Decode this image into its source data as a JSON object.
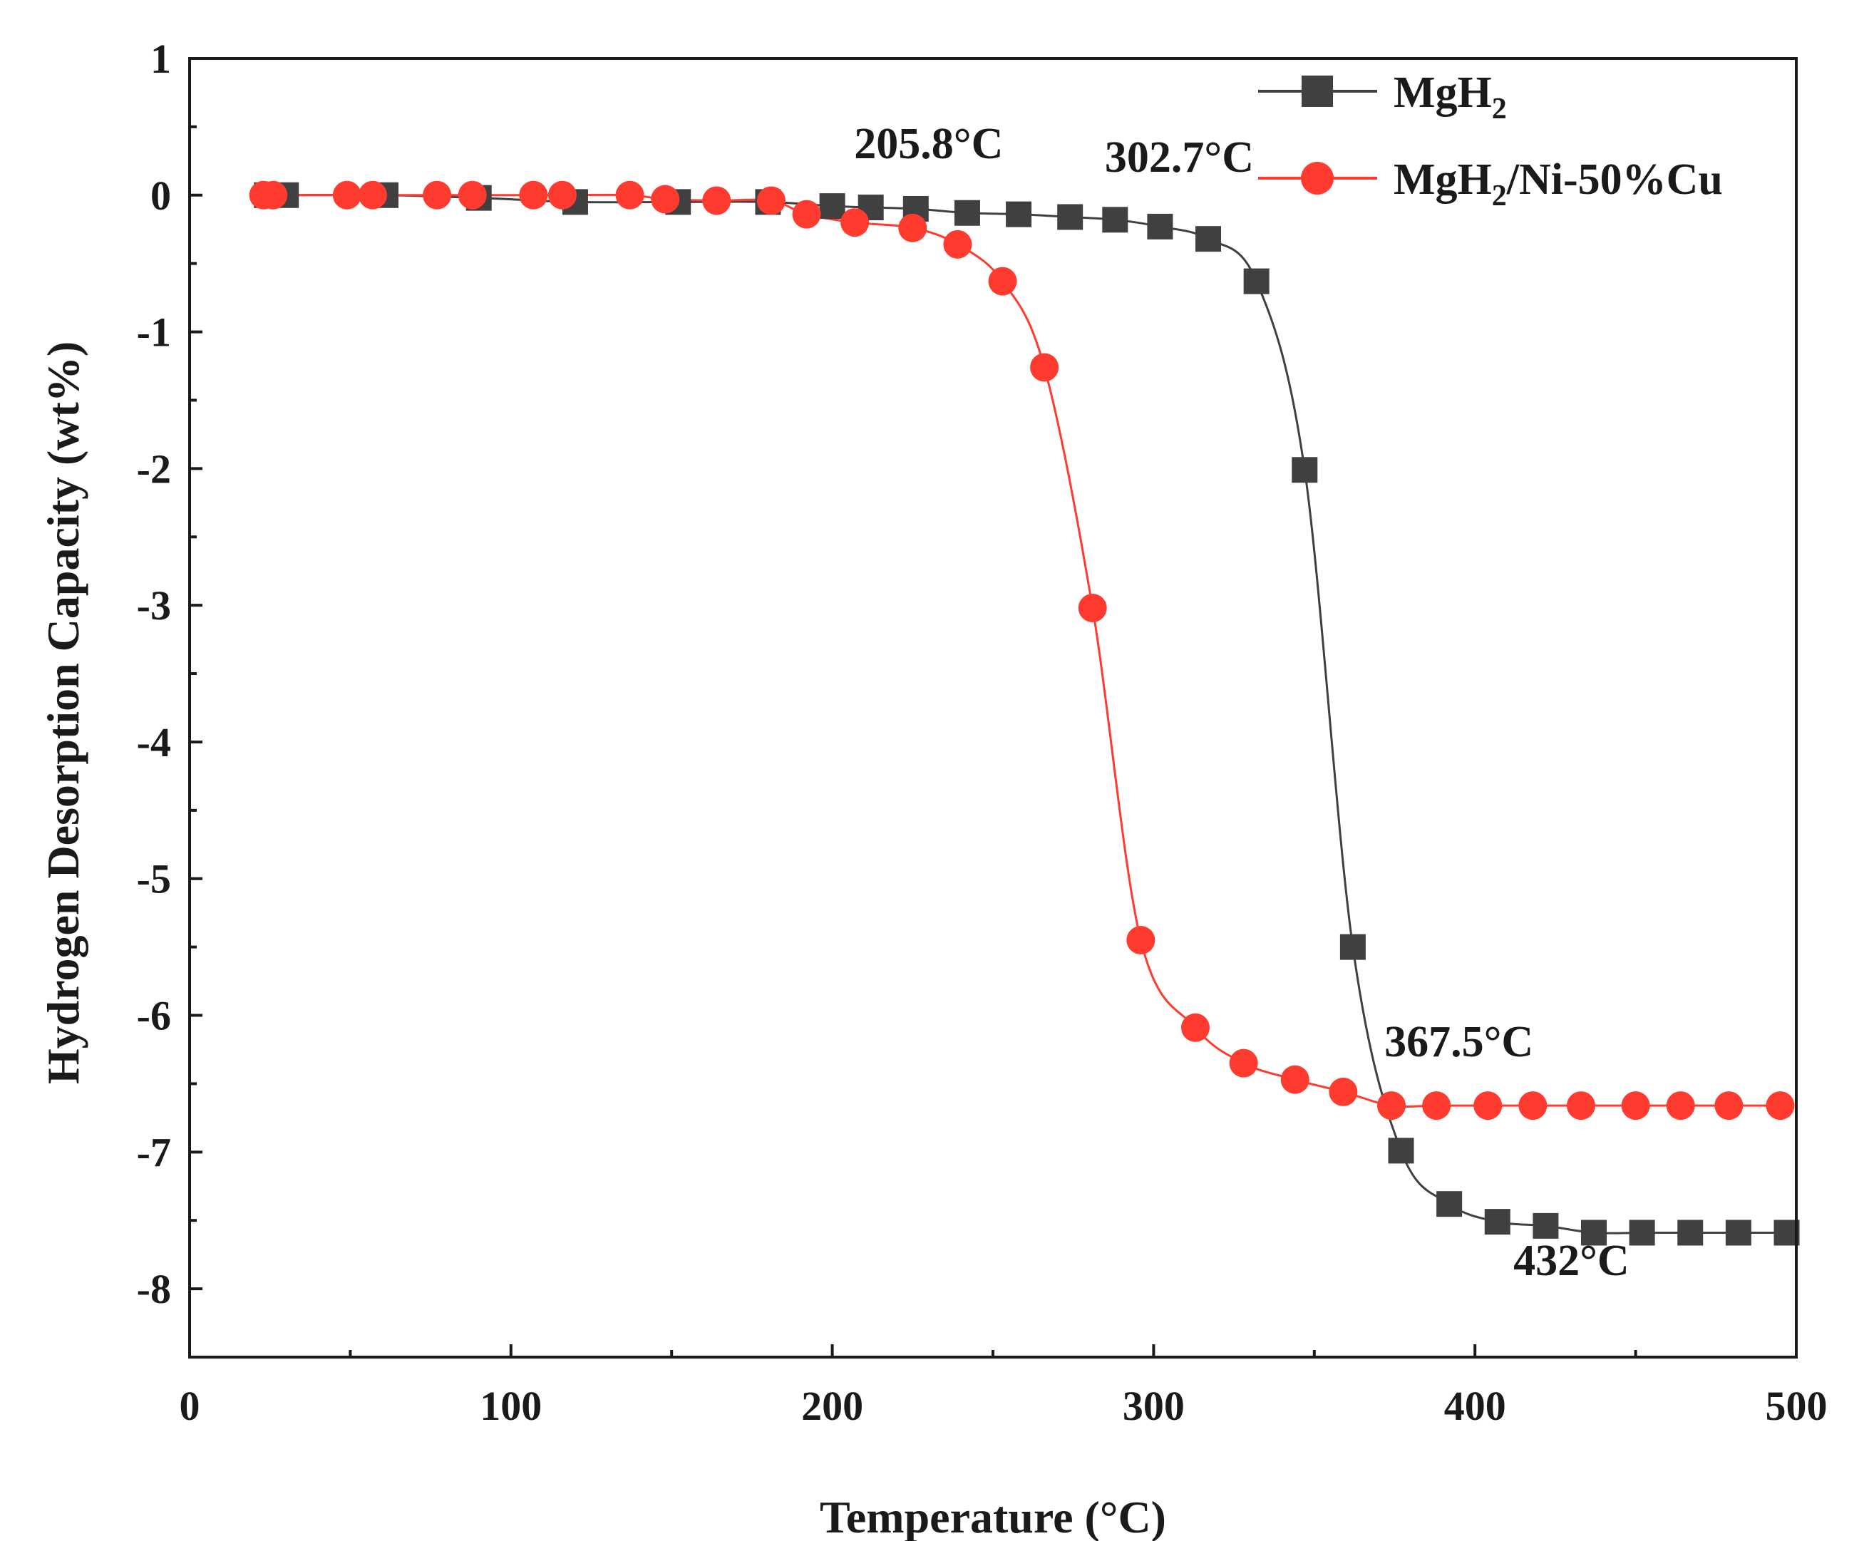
{
  "chart_data": {
    "type": "line",
    "xlabel": "Temperature (°C)",
    "ylabel": "Hydrogen Desorption Capacity (wt%)",
    "xlim": [
      0,
      500
    ],
    "ylim": [
      -8.5,
      1
    ],
    "xticks": [
      0,
      100,
      200,
      300,
      400,
      500
    ],
    "xtick_labels": [
      "0",
      "100",
      "200",
      "300",
      "400",
      "500"
    ],
    "yticks": [
      1,
      0,
      -1,
      -2,
      -3,
      -4,
      -5,
      -6,
      -7,
      -8
    ],
    "ytick_labels": [
      "1",
      "0",
      "-1",
      "-2",
      "-3",
      "-4",
      "-5",
      "-6",
      "-7",
      "-8"
    ],
    "grid": false,
    "legend_position": "top-right",
    "series": [
      {
        "name": "MgH2",
        "label_main": "MgH",
        "label_sub": "2",
        "label_tail": "",
        "color": "#404040",
        "marker": "square",
        "x": [
          24,
          30,
          61,
          90,
          120,
          152,
          180,
          200,
          212,
          226,
          242,
          258,
          274,
          288,
          302,
          317,
          332,
          347,
          362,
          377,
          392,
          407,
          422,
          437,
          452,
          467,
          482,
          497
        ],
        "y": [
          0,
          0,
          0,
          -0.02,
          -0.05,
          -0.05,
          -0.05,
          -0.08,
          -0.09,
          -0.1,
          -0.13,
          -0.14,
          -0.16,
          -0.18,
          -0.23,
          -0.32,
          -0.63,
          -2.01,
          -5.5,
          -6.99,
          -7.38,
          -7.51,
          -7.54,
          -7.59,
          -7.59,
          -7.59,
          -7.59,
          -7.59
        ]
      },
      {
        "name": "MgH2/Ni-50%Cu",
        "label_main": "MgH",
        "label_sub": "2",
        "label_tail": "/Ni-50%Cu",
        "color": "#ff3b30",
        "marker": "circle",
        "x": [
          23,
          26,
          49,
          57,
          77,
          88,
          107,
          116,
          137,
          148,
          164,
          181,
          192,
          207,
          225,
          239,
          253,
          266,
          281,
          296,
          313,
          328,
          344,
          359,
          374,
          388,
          404,
          418,
          433,
          450,
          464,
          479,
          495
        ],
        "y": [
          0,
          0,
          0,
          0,
          0,
          0,
          0,
          0,
          0,
          -0.03,
          -0.04,
          -0.04,
          -0.14,
          -0.2,
          -0.24,
          -0.36,
          -0.63,
          -1.26,
          -3.02,
          -5.45,
          -6.09,
          -6.35,
          -6.47,
          -6.56,
          -6.66,
          -6.66,
          -6.66,
          -6.66,
          -6.66,
          -6.66,
          -6.66,
          -6.66,
          -6.66
        ]
      }
    ],
    "annotations": [
      {
        "text": "205.8°C",
        "x": 230,
        "y": 0.27
      },
      {
        "text": "302.7°C",
        "x": 308,
        "y": 0.17
      },
      {
        "text": "367.5°C",
        "x": 395,
        "y": -6.3
      },
      {
        "text": "432°C",
        "x": 430,
        "y": -7.9
      }
    ]
  }
}
